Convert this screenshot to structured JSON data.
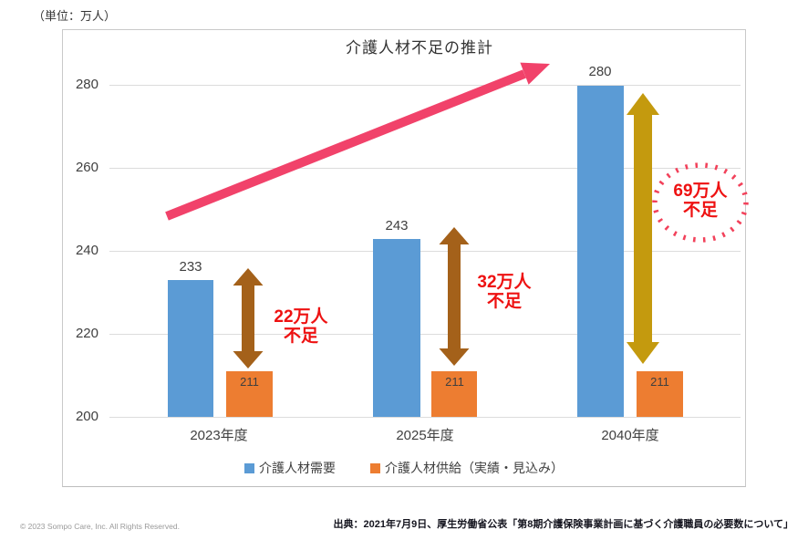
{
  "header": {
    "unit_label": "（単位：万人）"
  },
  "chart_data": {
    "type": "bar",
    "title": "介護人材不足の推計",
    "categories": [
      "2023年度",
      "2025年度",
      "2040年度"
    ],
    "series": [
      {
        "key": "demand",
        "name": "介護人材需要",
        "color": "#5b9bd5",
        "values": [
          233,
          243,
          280
        ]
      },
      {
        "key": "supply",
        "name": "介護人材供給（実績・見込み）",
        "color": "#ed7d31",
        "values": [
          211,
          211,
          211
        ]
      }
    ],
    "y_ticks": [
      280,
      260,
      240,
      220,
      200
    ],
    "ylim": [
      200,
      288
    ],
    "grid": true,
    "legend_position": "bottom",
    "annotations": {
      "trend_arrow": "rising-trend-toward-title",
      "shortages": [
        {
          "category": "2023年度",
          "value": 22,
          "line1": "22万人",
          "line2": "不足",
          "arrow_color": "#a4611a"
        },
        {
          "category": "2025年度",
          "value": 32,
          "line1": "32万人",
          "line2": "不足",
          "arrow_color": "#a4611a"
        },
        {
          "category": "2040年度",
          "value": 69,
          "line1": "69万人",
          "line2": "不足",
          "arrow_color": "#c49a0e",
          "highlight": "dotted-circle"
        }
      ]
    }
  },
  "colors": {
    "demand_bar": "#5b9bd5",
    "supply_bar": "#ed7d31",
    "shortage_arrow_brown": "#a4611a",
    "shortage_arrow_gold": "#c49a0e",
    "trend_arrow_pink": "#f1426a",
    "annotation_red": "#ee1111",
    "dotted_circle": "#f2415a",
    "gridline": "#dcdcdc"
  },
  "footer": {
    "copyright": "© 2023 Sompo Care, Inc. All Rights Reserved.",
    "source": "出典：2021年7月9日、厚生労働省公表「第8期介護保険事業計画に基づく介護職員の必要数について」"
  }
}
